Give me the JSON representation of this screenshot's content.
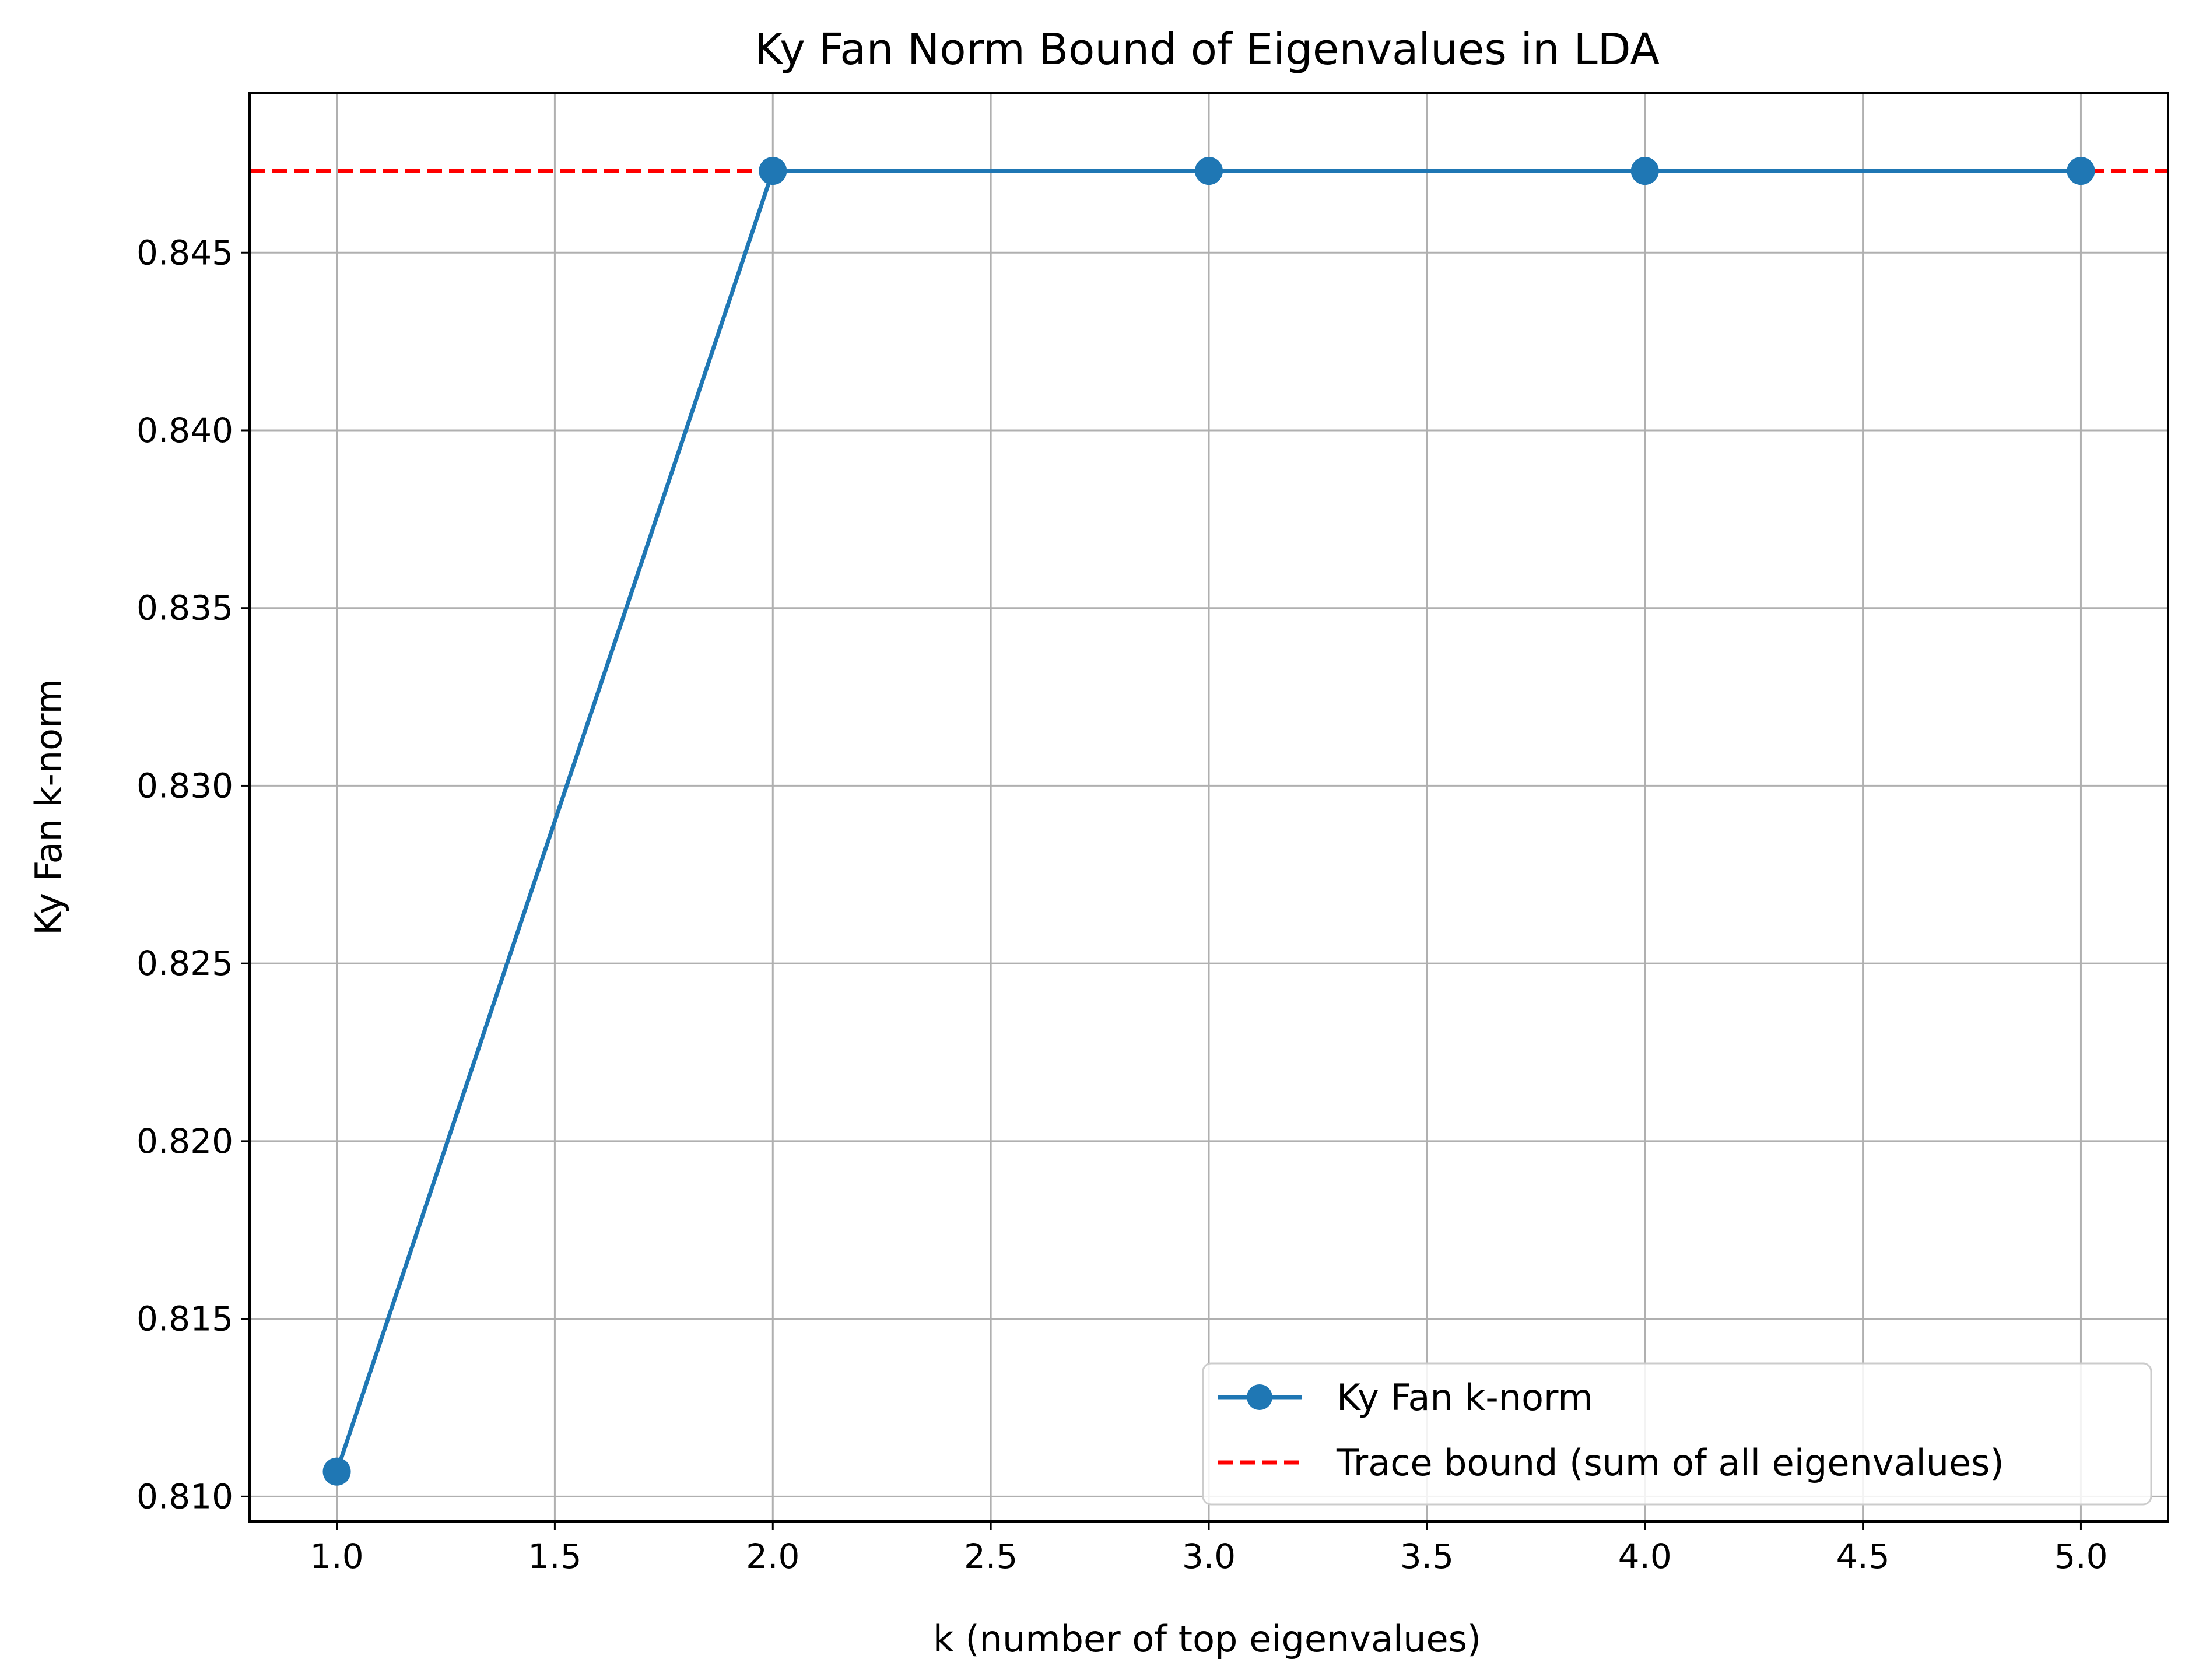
{
  "chart_data": {
    "type": "line",
    "title": "Ky Fan Norm Bound of Eigenvalues in LDA",
    "xlabel": "k (number of top eigenvalues)",
    "ylabel": "Ky Fan k-norm",
    "xlim": [
      0.8,
      5.2
    ],
    "ylim": [
      0.8093,
      0.8495
    ],
    "xticks": [
      1.0,
      1.5,
      2.0,
      2.5,
      3.0,
      3.5,
      4.0,
      4.5,
      5.0
    ],
    "xtick_labels": [
      "1.0",
      "1.5",
      "2.0",
      "2.5",
      "3.0",
      "3.5",
      "4.0",
      "4.5",
      "5.0"
    ],
    "yticks": [
      0.81,
      0.815,
      0.82,
      0.825,
      0.83,
      0.835,
      0.84,
      0.845
    ],
    "ytick_labels": [
      "0.810",
      "0.815",
      "0.820",
      "0.825",
      "0.830",
      "0.835",
      "0.840",
      "0.845"
    ],
    "grid": true,
    "legend_position": "lower-right",
    "series": [
      {
        "name": "Ky Fan k-norm",
        "x": [
          1,
          2,
          3,
          4,
          5
        ],
        "y": [
          0.8107,
          0.8473,
          0.8473,
          0.8473,
          0.8473
        ],
        "color": "#1f77b4",
        "style": "solid",
        "marker": "circle"
      },
      {
        "name": "Trace bound (sum of all eigenvalues)",
        "y": 0.8473,
        "color": "#ff0000",
        "style": "dashed",
        "kind": "horizontal-line"
      }
    ]
  }
}
